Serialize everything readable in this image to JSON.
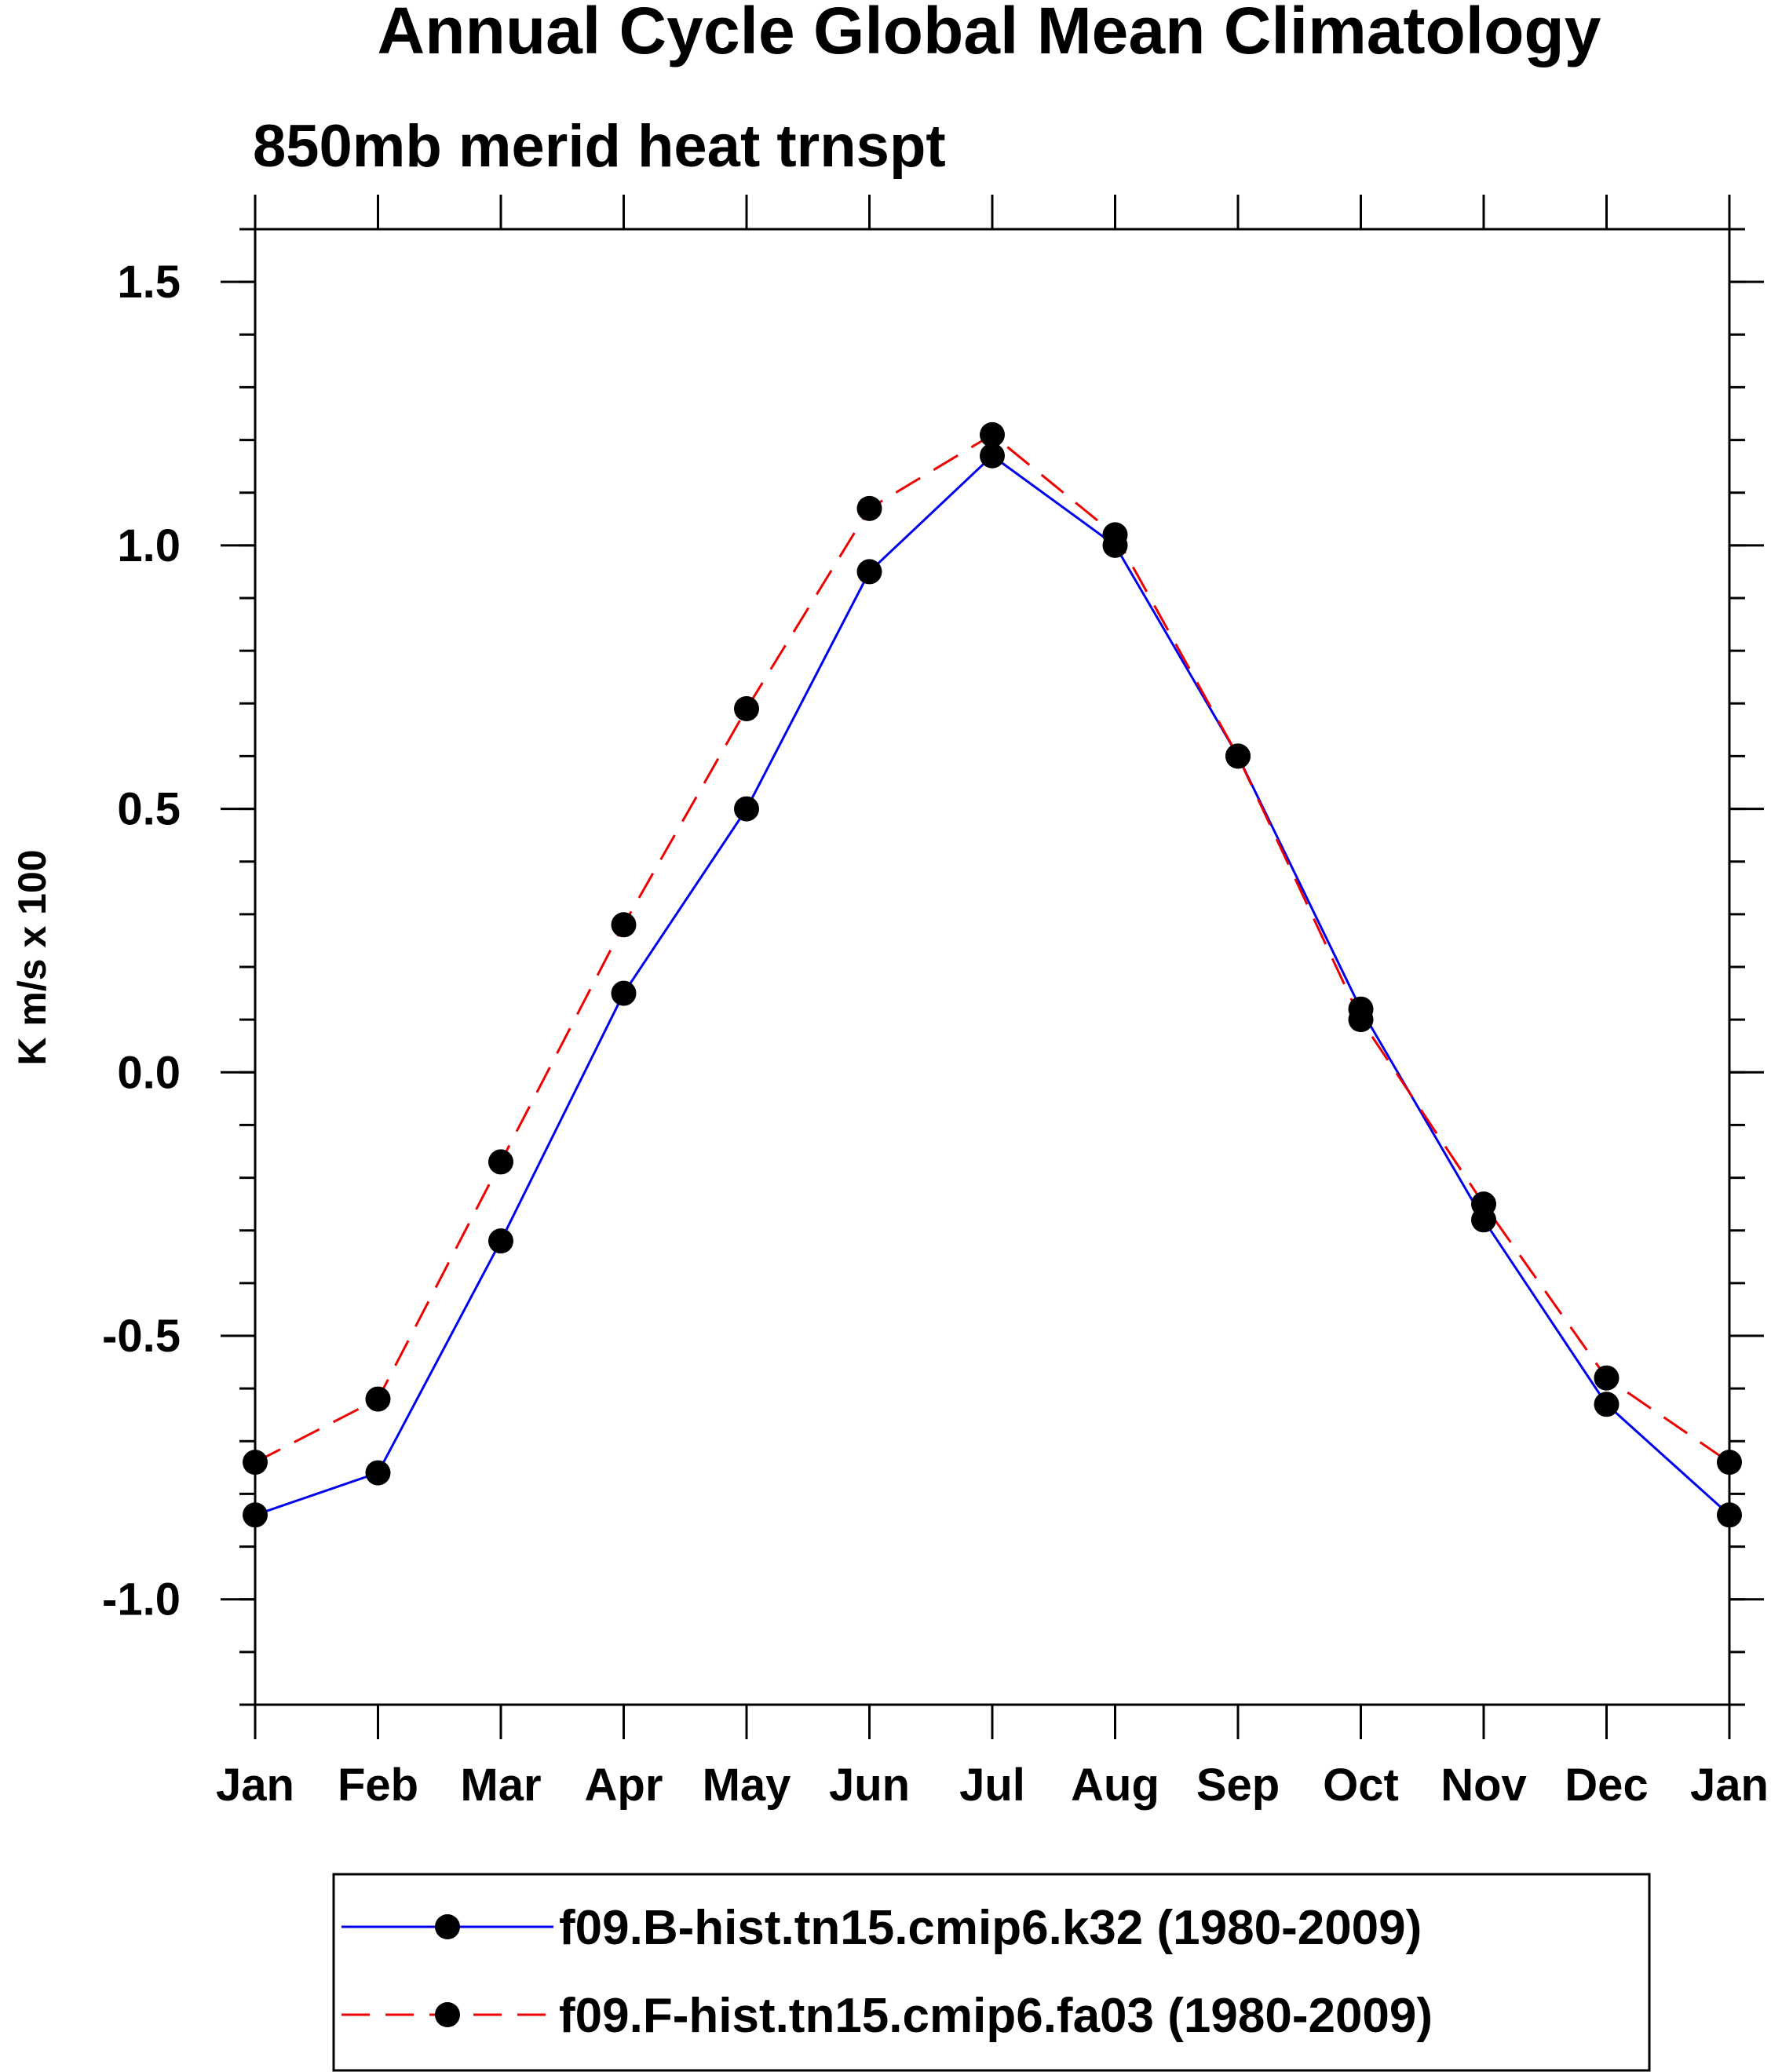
{
  "chart_data": {
    "type": "line",
    "title": "Annual Cycle Global Mean Climatology",
    "subtitle": "850mb merid heat trnspt",
    "ylabel": "K m/s x 100",
    "xlabel": "",
    "categories": [
      "Jan",
      "Feb",
      "Mar",
      "Apr",
      "May",
      "Jun",
      "Jul",
      "Aug",
      "Sep",
      "Oct",
      "Nov",
      "Dec",
      "Jan"
    ],
    "ylim": [
      -1.2,
      1.6
    ],
    "y_ticks": [
      -1.0,
      -0.5,
      0.0,
      0.5,
      1.0,
      1.5
    ],
    "y_tick_labels": [
      "-1.0",
      "-0.5",
      "0.0",
      "0.5",
      "1.0",
      "1.5"
    ],
    "y_minor_step": 0.1,
    "grid": false,
    "legend_position": "bottom",
    "series": [
      {
        "name": "f09.B-hist.tn15.cmip6.k32 (1980-2009)",
        "color": "#0000ee",
        "dash": "solid",
        "marker": "filled-circle",
        "values": [
          -0.84,
          -0.76,
          -0.32,
          0.15,
          0.5,
          0.95,
          1.17,
          1.0,
          0.6,
          0.12,
          -0.28,
          -0.63,
          -0.84
        ]
      },
      {
        "name": "f09.F-hist.tn15.cmip6.fa03 (1980-2009)",
        "color": "#ee0000",
        "dash": "dashed",
        "marker": "filled-circle",
        "values": [
          -0.74,
          -0.62,
          -0.17,
          0.28,
          0.69,
          1.07,
          1.21,
          1.02,
          0.6,
          0.1,
          -0.25,
          -0.58,
          -0.74
        ]
      }
    ]
  }
}
